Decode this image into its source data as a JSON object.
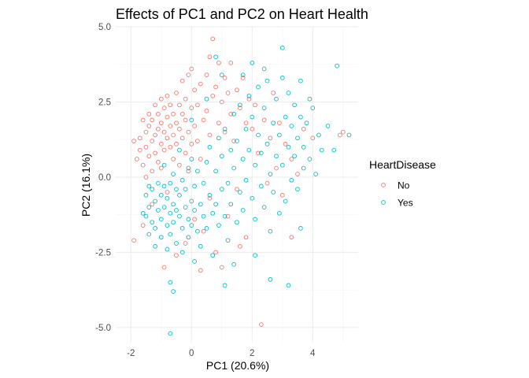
{
  "chart_data": {
    "type": "scatter",
    "title": "Effects of PC1 and PC2 on Heart Health",
    "xlabel": "PC1 (20.6%)",
    "ylabel": "PC2 (16.1%)",
    "xlim": [
      -2.5,
      5.5
    ],
    "ylim": [
      -5.5,
      5.0
    ],
    "x_ticks": [
      -2,
      0,
      2,
      4
    ],
    "y_ticks": [
      -5.0,
      -2.5,
      0.0,
      2.5,
      5.0
    ],
    "x_tick_labels": [
      "-2",
      "0",
      "2",
      "4"
    ],
    "y_tick_labels": [
      "-5.0",
      "-2.5",
      "0.0",
      "2.5",
      "5.0"
    ],
    "grid": true,
    "legend": {
      "title": "HeartDisease",
      "placement": "right"
    },
    "series": [
      {
        "name": "No",
        "color": "#F8766D",
        "points": [
          [
            -1.9,
            -2.1
          ],
          [
            -1.9,
            1.2
          ],
          [
            -1.8,
            0.6
          ],
          [
            -1.7,
            0.9
          ],
          [
            -1.7,
            1.3
          ],
          [
            -1.6,
            1.9
          ],
          [
            -1.6,
            0.4
          ],
          [
            -1.5,
            1.5
          ],
          [
            -1.5,
            0.0
          ],
          [
            -1.5,
            1.0
          ],
          [
            -1.4,
            2.1
          ],
          [
            -1.4,
            1.7
          ],
          [
            -1.4,
            0.7
          ],
          [
            -1.3,
            1.2
          ],
          [
            -1.3,
            1.9
          ],
          [
            -1.3,
            0.2
          ],
          [
            -1.2,
            2.4
          ],
          [
            -1.2,
            1.4
          ],
          [
            -1.2,
            0.8
          ],
          [
            -1.1,
            2.1
          ],
          [
            -1.1,
            1.6
          ],
          [
            -1.1,
            0.5
          ],
          [
            -1.0,
            2.6
          ],
          [
            -1.0,
            1.8
          ],
          [
            -1.0,
            1.1
          ],
          [
            -1.0,
            0.3
          ],
          [
            -0.9,
            2.3
          ],
          [
            -0.9,
            1.5
          ],
          [
            -0.9,
            0.9
          ],
          [
            -0.8,
            2.0
          ],
          [
            -0.8,
            1.3
          ],
          [
            -0.8,
            2.7
          ],
          [
            -0.7,
            1.7
          ],
          [
            -0.7,
            1.0
          ],
          [
            -0.7,
            2.4
          ],
          [
            -0.6,
            2.1
          ],
          [
            -0.6,
            1.4
          ],
          [
            -0.6,
            0.6
          ],
          [
            -0.5,
            2.8
          ],
          [
            -0.5,
            1.8
          ],
          [
            -0.5,
            1.1
          ],
          [
            -0.4,
            2.4
          ],
          [
            -0.4,
            1.6
          ],
          [
            -0.4,
            0.4
          ],
          [
            -0.3,
            2.1
          ],
          [
            -0.3,
            1.3
          ],
          [
            -0.3,
            3.2
          ],
          [
            -0.2,
            1.9
          ],
          [
            -0.2,
            0.8
          ],
          [
            -0.2,
            2.6
          ],
          [
            -0.1,
            1.5
          ],
          [
            -0.1,
            3.4
          ],
          [
            -0.1,
            0.2
          ],
          [
            0.0,
            2.3
          ],
          [
            0.0,
            1.1
          ],
          [
            0.0,
            3.6
          ],
          [
            0.1,
            1.7
          ],
          [
            0.1,
            2.9
          ],
          [
            0.2,
            1.2
          ],
          [
            0.2,
            2.4
          ],
          [
            0.3,
            3.1
          ],
          [
            0.3,
            0.6
          ],
          [
            0.4,
            1.9
          ],
          [
            0.5,
            3.4
          ],
          [
            0.5,
            2.2
          ],
          [
            0.6,
            4.0
          ],
          [
            0.6,
            1.4
          ],
          [
            0.7,
            2.7
          ],
          [
            0.7,
            4.6
          ],
          [
            0.8,
            3.0
          ],
          [
            0.9,
            1.8
          ],
          [
            0.9,
            3.8
          ],
          [
            1.0,
            2.5
          ],
          [
            1.1,
            3.3
          ],
          [
            1.1,
            1.5
          ],
          [
            1.2,
            2.8
          ],
          [
            1.3,
            3.8
          ],
          [
            1.3,
            2.1
          ],
          [
            1.4,
            1.2
          ],
          [
            1.5,
            2.9
          ],
          [
            1.6,
            2.3
          ],
          [
            1.7,
            3.3
          ],
          [
            1.8,
            1.8
          ],
          [
            1.9,
            2.6
          ],
          [
            2.0,
            1.6
          ],
          [
            2.1,
            2.4
          ],
          [
            2.2,
            0.8
          ],
          [
            2.4,
            1.9
          ],
          [
            2.5,
            -0.2
          ],
          [
            2.6,
            1.3
          ],
          [
            2.8,
            0.3
          ],
          [
            2.9,
            1.8
          ],
          [
            3.0,
            -0.6
          ],
          [
            3.1,
            1.1
          ],
          [
            3.3,
            0.6
          ],
          [
            3.5,
            0.1
          ],
          [
            3.7,
            1.6
          ],
          [
            4.0,
            1.3
          ],
          [
            -1.6,
            -1.6
          ],
          [
            -1.3,
            -0.9
          ],
          [
            -0.8,
            -0.5
          ],
          [
            -0.5,
            -2.6
          ],
          [
            -0.2,
            -2.2
          ],
          [
            0.1,
            -1.4
          ],
          [
            0.4,
            -1.8
          ],
          [
            0.6,
            -0.7
          ],
          [
            0.8,
            -2.5
          ],
          [
            1.0,
            -3.0
          ],
          [
            1.2,
            -1.3
          ],
          [
            1.5,
            -0.4
          ],
          [
            1.8,
            -2.0
          ],
          [
            0.3,
            -3.1
          ],
          [
            -0.9,
            -3.0
          ],
          [
            2.3,
            -4.9
          ],
          [
            4.9,
            1.4
          ],
          [
            5.0,
            1.5
          ],
          [
            2.7,
            2.8
          ],
          [
            3.3,
            -2.0
          ],
          [
            1.6,
            -2.3
          ]
        ]
      },
      {
        "name": "Yes",
        "color": "#00BFC4",
        "points": [
          [
            -1.6,
            -1.2
          ],
          [
            -1.5,
            -0.6
          ],
          [
            -1.5,
            -1.3
          ],
          [
            -1.4,
            -0.3
          ],
          [
            -1.4,
            -1.0
          ],
          [
            -1.3,
            -1.5
          ],
          [
            -1.3,
            -0.4
          ],
          [
            -1.2,
            -0.8
          ],
          [
            -1.2,
            -1.7
          ],
          [
            -1.1,
            -1.1
          ],
          [
            -1.1,
            -0.2
          ],
          [
            -1.0,
            -1.4
          ],
          [
            -1.0,
            -0.6
          ],
          [
            -1.0,
            -2.0
          ],
          [
            -0.9,
            -1.0
          ],
          [
            -0.9,
            -0.3
          ],
          [
            -0.8,
            -1.6
          ],
          [
            -0.8,
            -0.7
          ],
          [
            -0.8,
            -2.4
          ],
          [
            -0.7,
            -1.2
          ],
          [
            -0.7,
            -0.2
          ],
          [
            -0.7,
            -1.9
          ],
          [
            -0.6,
            -0.9
          ],
          [
            -0.6,
            -1.5
          ],
          [
            -0.6,
            0.1
          ],
          [
            -0.5,
            -1.1
          ],
          [
            -0.5,
            -0.4
          ],
          [
            -0.5,
            -2.2
          ],
          [
            -0.4,
            -1.3
          ],
          [
            -0.4,
            -0.6
          ],
          [
            -0.3,
            -1.7
          ],
          [
            -0.3,
            -0.1
          ],
          [
            -0.3,
            -2.5
          ],
          [
            -0.2,
            -1.0
          ],
          [
            -0.2,
            -0.4
          ],
          [
            -0.1,
            -1.4
          ],
          [
            -0.1,
            0.3
          ],
          [
            -0.1,
            -2.0
          ],
          [
            0.0,
            -0.8
          ],
          [
            0.0,
            -1.6
          ],
          [
            0.0,
            0.6
          ],
          [
            0.1,
            -1.1
          ],
          [
            0.1,
            -0.3
          ],
          [
            0.2,
            -1.8
          ],
          [
            0.2,
            0.2
          ],
          [
            0.3,
            -0.9
          ],
          [
            0.3,
            -2.3
          ],
          [
            0.4,
            -0.2
          ],
          [
            0.4,
            -1.3
          ],
          [
            0.5,
            0.5
          ],
          [
            0.5,
            -1.7
          ],
          [
            0.6,
            -0.6
          ],
          [
            0.6,
            1.0
          ],
          [
            0.7,
            -1.2
          ],
          [
            0.7,
            -2.6
          ],
          [
            0.8,
            0.2
          ],
          [
            0.8,
            -0.9
          ],
          [
            0.9,
            1.3
          ],
          [
            0.9,
            -1.6
          ],
          [
            1.0,
            -0.4
          ],
          [
            1.0,
            0.7
          ],
          [
            1.1,
            -1.3
          ],
          [
            1.1,
            1.6
          ],
          [
            1.2,
            -0.2
          ],
          [
            1.2,
            -2.1
          ],
          [
            1.3,
            0.9
          ],
          [
            1.3,
            -0.9
          ],
          [
            1.4,
            2.1
          ],
          [
            1.4,
            0.3
          ],
          [
            1.5,
            -1.5
          ],
          [
            1.5,
            1.2
          ],
          [
            1.6,
            -0.5
          ],
          [
            1.6,
            2.4
          ],
          [
            1.7,
            0.6
          ],
          [
            1.7,
            -1.1
          ],
          [
            1.8,
            1.6
          ],
          [
            1.8,
            -0.1
          ],
          [
            1.9,
            2.7
          ],
          [
            1.9,
            0.9
          ],
          [
            2.0,
            -0.7
          ],
          [
            2.0,
            2.0
          ],
          [
            2.1,
            0.4
          ],
          [
            2.1,
            -1.4
          ],
          [
            2.2,
            1.4
          ],
          [
            2.2,
            3.0
          ],
          [
            2.3,
            -0.3
          ],
          [
            2.3,
            0.8
          ],
          [
            2.4,
            2.3
          ],
          [
            2.4,
            -1.0
          ],
          [
            2.5,
            1.1
          ],
          [
            2.5,
            3.2
          ],
          [
            2.6,
            0.1
          ],
          [
            2.6,
            -1.8
          ],
          [
            2.7,
            1.8
          ],
          [
            2.7,
            -0.5
          ],
          [
            2.8,
            2.6
          ],
          [
            2.8,
            0.7
          ],
          [
            2.9,
            -1.2
          ],
          [
            2.9,
            1.4
          ],
          [
            3.0,
            3.3
          ],
          [
            3.0,
            0.4
          ],
          [
            3.1,
            2.0
          ],
          [
            3.1,
            -0.8
          ],
          [
            3.2,
            1.0
          ],
          [
            3.2,
            2.8
          ],
          [
            3.3,
            -0.1
          ],
          [
            3.3,
            1.7
          ],
          [
            3.4,
            0.7
          ],
          [
            3.4,
            2.4
          ],
          [
            3.5,
            -0.4
          ],
          [
            3.5,
            1.3
          ],
          [
            3.6,
            2.0
          ],
          [
            3.7,
            0.3
          ],
          [
            3.7,
            1.0
          ],
          [
            3.8,
            1.8
          ],
          [
            3.9,
            0.6
          ],
          [
            4.0,
            2.3
          ],
          [
            4.1,
            0.1
          ],
          [
            4.2,
            1.4
          ],
          [
            4.3,
            0.9
          ],
          [
            4.5,
            1.7
          ],
          [
            4.7,
            0.9
          ],
          [
            5.2,
            1.4
          ],
          [
            4.8,
            3.7
          ],
          [
            3.0,
            4.3
          ],
          [
            0.8,
            4.0
          ],
          [
            -0.7,
            -3.5
          ],
          [
            -0.6,
            -3.8
          ],
          [
            -0.7,
            -5.2
          ],
          [
            1.1,
            -3.6
          ],
          [
            2.6,
            -3.4
          ],
          [
            3.2,
            -3.6
          ],
          [
            -1.4,
            -1.9
          ],
          [
            -1.2,
            -2.3
          ],
          [
            0.1,
            -2.8
          ],
          [
            1.4,
            -2.9
          ],
          [
            2.1,
            -2.6
          ],
          [
            3.6,
            -1.7
          ],
          [
            0.5,
            2.6
          ],
          [
            1.0,
            3.4
          ],
          [
            1.7,
            3.4
          ],
          [
            2.4,
            3.6
          ],
          [
            2.0,
            3.8
          ],
          [
            3.6,
            3.2
          ],
          [
            3.9,
            2.6
          ],
          [
            0.0,
            1.9
          ],
          [
            -0.4,
            0.9
          ],
          [
            -0.9,
            0.4
          ]
        ]
      }
    ]
  }
}
